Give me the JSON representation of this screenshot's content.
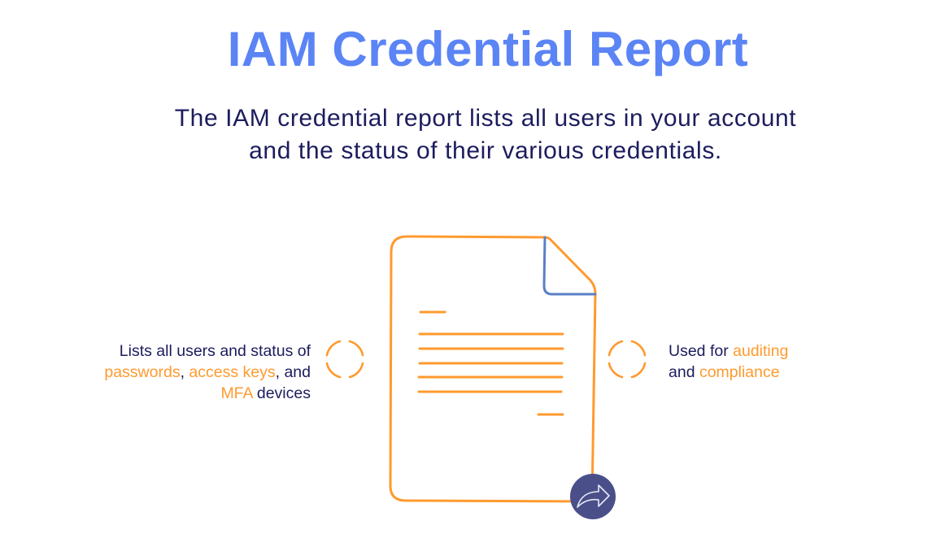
{
  "title": "IAM Credential Report",
  "subtitle": {
    "line1": "The IAM credential report lists all users in your account",
    "line2": "and the status of their various credentials."
  },
  "left_caption": {
    "line1": "Lists all users and status of",
    "passwords": "passwords",
    "comma1": ", ",
    "access_keys": "access keys",
    "and": ", and",
    "mfa": "MFA",
    "devices": " devices"
  },
  "right_caption": {
    "used_for": "Used for ",
    "auditing": "auditing",
    "and": "and ",
    "compliance": "compliance"
  },
  "icons": {
    "document": "document-icon",
    "focus_left": "dashed-circle-icon",
    "focus_right": "dashed-circle-icon",
    "share": "share-arrow-icon"
  },
  "colors": {
    "title": "#5b84f5",
    "text": "#1c1c5e",
    "accent": "#ff9a2e",
    "fold": "#5a7fc4",
    "badge": "#4a4f8a"
  }
}
